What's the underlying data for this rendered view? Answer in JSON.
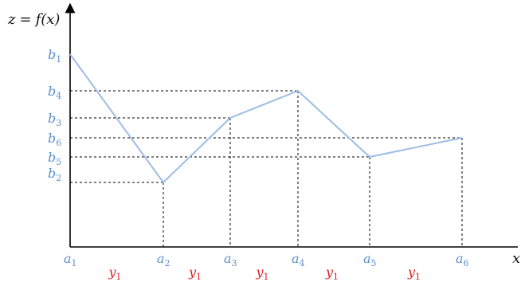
{
  "y_axis_label": {
    "lhs": "z",
    "eq": "=",
    "f": "f",
    "arg": "(x)"
  },
  "x_axis_label": "x",
  "colors": {
    "curve": "#9dbde6",
    "tick_label": "#5b8fd0",
    "interval_label": "#e02020",
    "axis": "#000000",
    "guide": "#000000"
  },
  "points": [
    {
      "name": "1",
      "x_label": "a",
      "y_label": "b",
      "rank": 5
    },
    {
      "name": "2",
      "x_label": "a",
      "y_label": "b",
      "rank": 0
    },
    {
      "name": "3",
      "x_label": "a",
      "y_label": "b",
      "rank": 3
    },
    {
      "name": "4",
      "x_label": "a",
      "y_label": "b",
      "rank": 4
    },
    {
      "name": "5",
      "x_label": "a",
      "y_label": "b",
      "rank": 1
    },
    {
      "name": "6",
      "x_label": "a",
      "y_label": "b",
      "rank": 2
    }
  ],
  "interval_labels": [
    {
      "base": "y",
      "sub": "1"
    },
    {
      "base": "y",
      "sub": "1"
    },
    {
      "base": "y",
      "sub": "1"
    },
    {
      "base": "y",
      "sub": "1"
    },
    {
      "base": "y",
      "sub": "1"
    }
  ]
}
